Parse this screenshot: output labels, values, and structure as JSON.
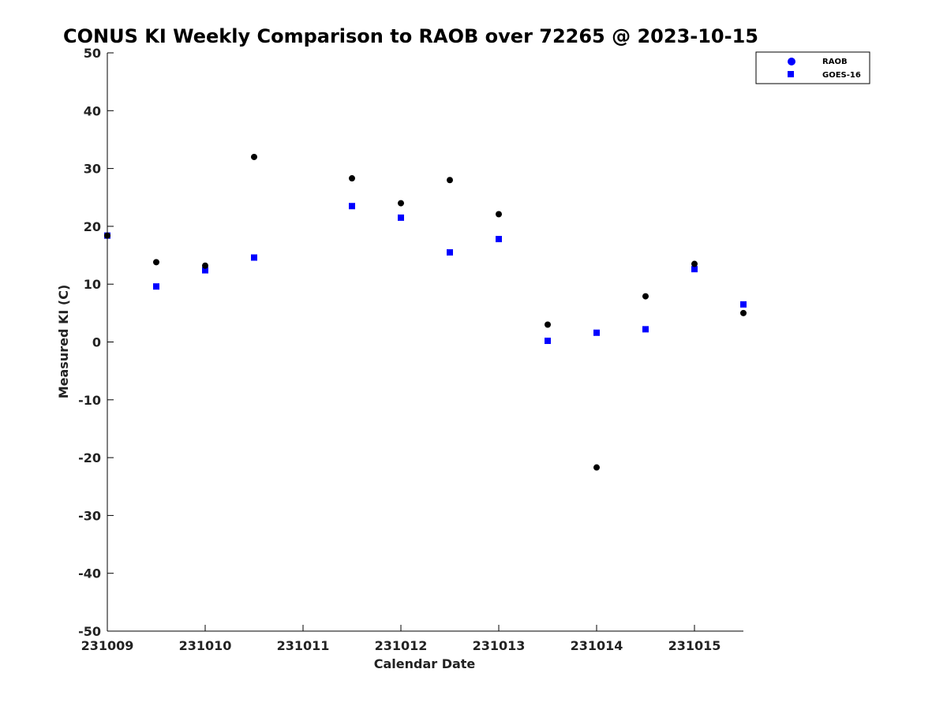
{
  "chart_data": {
    "type": "scatter",
    "title": "CONUS KI Weekly Comparison to RAOB over 72265 @ 2023-10-15",
    "xlabel": "Calendar Date",
    "ylabel": "Measured KI (C)",
    "xlim": [
      0,
      6.5
    ],
    "ylim": [
      -50,
      50
    ],
    "x_ticks": [
      {
        "value": 0,
        "label": "231009"
      },
      {
        "value": 1,
        "label": "231010"
      },
      {
        "value": 2,
        "label": "231011"
      },
      {
        "value": 3,
        "label": "231012"
      },
      {
        "value": 4,
        "label": "231013"
      },
      {
        "value": 5,
        "label": "231014"
      },
      {
        "value": 6,
        "label": "231015"
      }
    ],
    "y_ticks": [
      {
        "value": 50,
        "label": "50"
      },
      {
        "value": 40,
        "label": "40"
      },
      {
        "value": 30,
        "label": "30"
      },
      {
        "value": 20,
        "label": "20"
      },
      {
        "value": 10,
        "label": "10"
      },
      {
        "value": 0,
        "label": "0"
      },
      {
        "value": -10,
        "label": "-10"
      },
      {
        "value": -20,
        "label": "-20"
      },
      {
        "value": -30,
        "label": "-30"
      },
      {
        "value": -40,
        "label": "-40"
      },
      {
        "value": -50,
        "label": "-50"
      }
    ],
    "legend_position": "top-right",
    "series": [
      {
        "name": "RAOB",
        "marker": "circle",
        "legend_color": "#0000ff",
        "point_color": "#000000",
        "points": [
          {
            "x": 0.0,
            "y": 18.4
          },
          {
            "x": 0.5,
            "y": 13.8
          },
          {
            "x": 1.0,
            "y": 13.2
          },
          {
            "x": 1.5,
            "y": 32.0
          },
          {
            "x": 2.5,
            "y": 28.3
          },
          {
            "x": 3.0,
            "y": 24.0
          },
          {
            "x": 3.5,
            "y": 28.0
          },
          {
            "x": 4.0,
            "y": 22.1
          },
          {
            "x": 4.5,
            "y": 3.0
          },
          {
            "x": 5.0,
            "y": -21.7
          },
          {
            "x": 5.5,
            "y": 7.9
          },
          {
            "x": 6.0,
            "y": 13.5
          },
          {
            "x": 6.5,
            "y": 5.0
          }
        ]
      },
      {
        "name": "GOES-16",
        "marker": "square",
        "legend_color": "#0000ff",
        "point_color": "#0000ff",
        "points": [
          {
            "x": 0.0,
            "y": 18.4
          },
          {
            "x": 0.5,
            "y": 9.6
          },
          {
            "x": 1.0,
            "y": 12.4
          },
          {
            "x": 1.5,
            "y": 14.6
          },
          {
            "x": 2.5,
            "y": 23.5
          },
          {
            "x": 3.0,
            "y": 21.5
          },
          {
            "x": 3.5,
            "y": 15.5
          },
          {
            "x": 4.0,
            "y": 17.8
          },
          {
            "x": 4.5,
            "y": 0.2
          },
          {
            "x": 5.0,
            "y": 1.6
          },
          {
            "x": 5.5,
            "y": 2.2
          },
          {
            "x": 6.0,
            "y": 12.6
          },
          {
            "x": 6.5,
            "y": 6.5
          }
        ]
      }
    ]
  }
}
